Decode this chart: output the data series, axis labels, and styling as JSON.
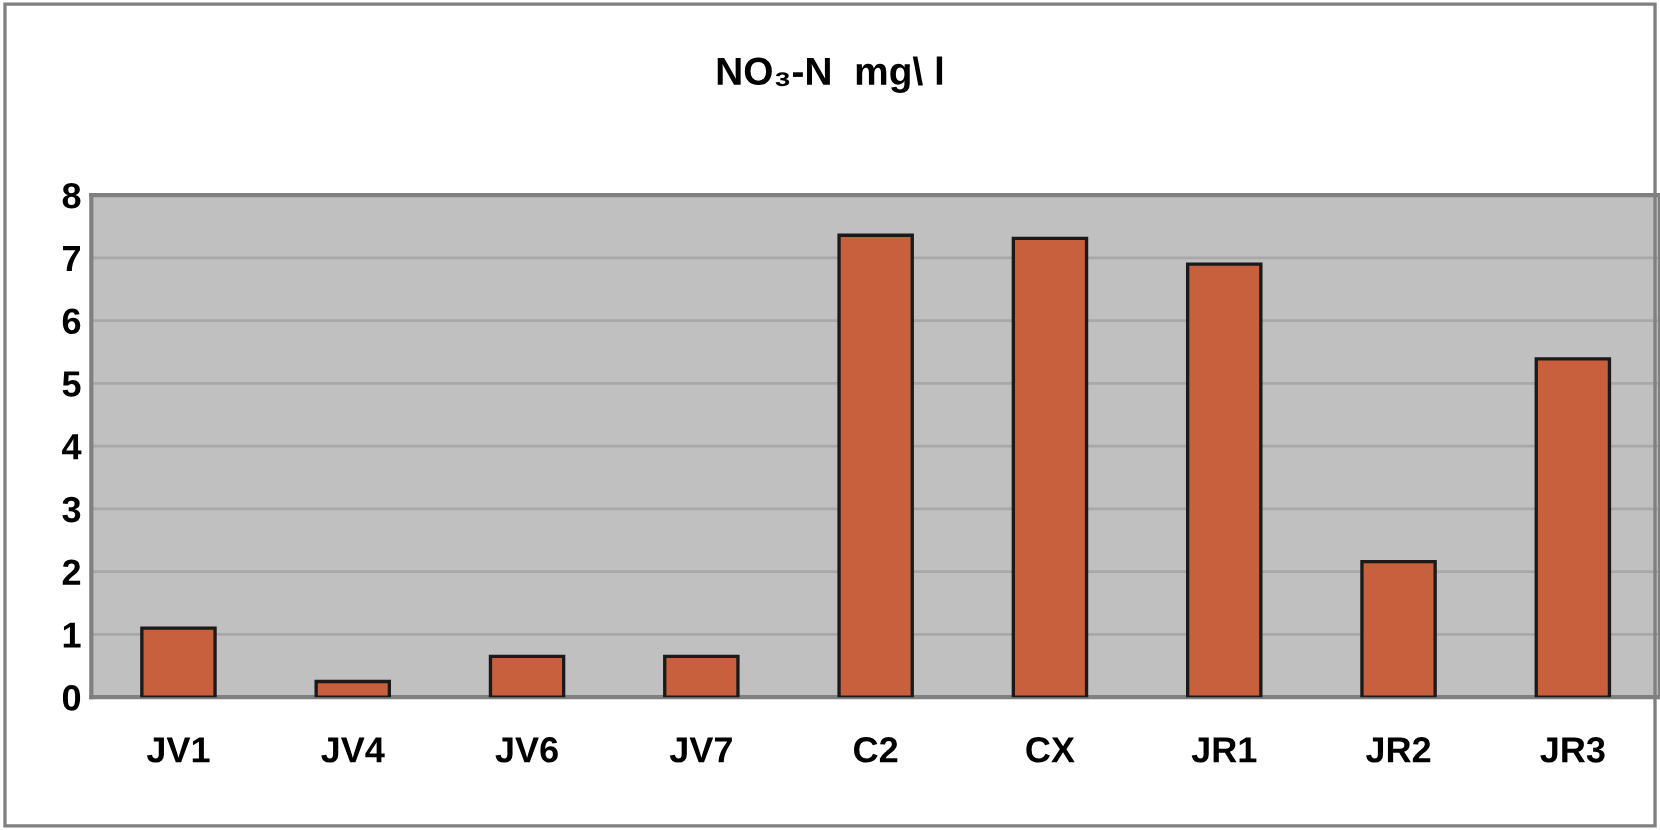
{
  "chart_data": {
    "type": "bar",
    "title": "NO₃-N  mg\\ l",
    "categories": [
      "JV1",
      "JV4",
      "JV6",
      "JV7",
      "C2",
      "CX",
      "JR1",
      "JR2",
      "JR3"
    ],
    "values": [
      1.1,
      0.25,
      0.65,
      0.65,
      7.36,
      7.31,
      6.9,
      2.16,
      5.39
    ],
    "color": "#c8603e",
    "ylim": [
      0,
      8
    ],
    "yticks": [
      0,
      1,
      2,
      3,
      4,
      5,
      6,
      7,
      8
    ],
    "grid": "y"
  }
}
